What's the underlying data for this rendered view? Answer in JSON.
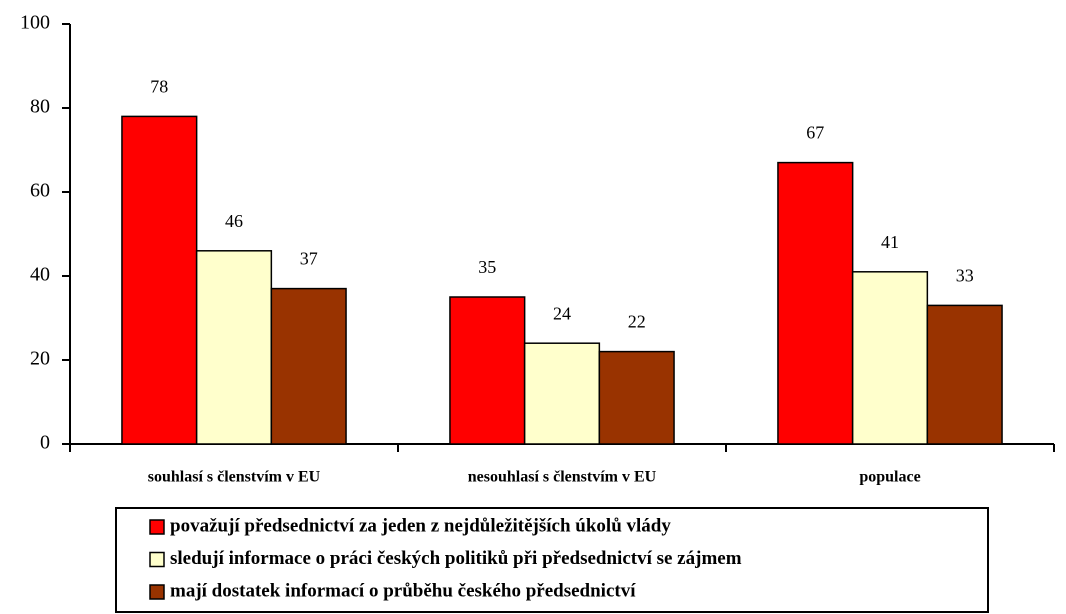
{
  "chart_data": {
    "type": "bar",
    "categories": [
      "souhlasí s členstvím v EU",
      "nesouhlasí s členstvím v EU",
      "populace"
    ],
    "series": [
      {
        "name": "považují předsednictví za jeden z nejdůležitějších úkolů vlády",
        "color": "#ff0000",
        "values": [
          78,
          35,
          67
        ]
      },
      {
        "name": "sledují informace o práci českých politiků při předsednictví se zájmem",
        "color": "#ffffcc",
        "values": [
          46,
          24,
          41
        ]
      },
      {
        "name": "mají dostatek informací o průběhu českého předsednictví",
        "color": "#993300",
        "values": [
          37,
          22,
          33
        ]
      }
    ],
    "ylim": [
      0,
      100
    ],
    "yticks": [
      0,
      20,
      40,
      60,
      80,
      100
    ],
    "grid": false,
    "legend": "bottom"
  }
}
